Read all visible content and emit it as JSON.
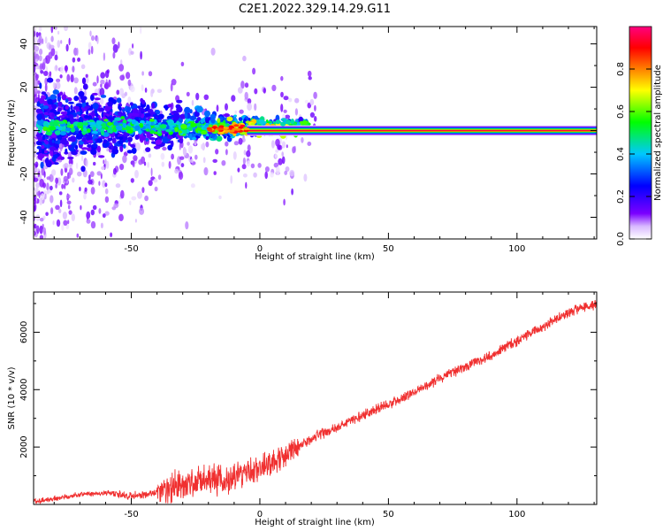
{
  "figure": {
    "title": "C2E1.2022.329.14.29.G11"
  },
  "chart_data": [
    {
      "type": "heatmap",
      "xlabel": "Height of straight line (km)",
      "ylabel": "Frequency (Hz)",
      "xlim": [
        -88,
        131
      ],
      "ylim": [
        -50,
        48
      ],
      "x_ticks": [
        -50,
        0,
        50,
        100
      ],
      "y_ticks": [
        -40,
        -20,
        0,
        20,
        40
      ],
      "grid": false,
      "colorbar": {
        "label": "Normalized spectral amplitude",
        "range": [
          0,
          1
        ],
        "ticks": [
          0.0,
          0.2,
          0.4,
          0.6,
          0.8
        ],
        "tick_labels": [
          "0.0",
          "0.2",
          "0.4",
          "0.6",
          "0.8"
        ],
        "colors": [
          "#ffffff",
          "#7b00ff",
          "#0000ff",
          "#00c8ff",
          "#00ff00",
          "#ffff00",
          "#ff8000",
          "#ff0000",
          "#ff0080"
        ]
      },
      "description_points": [
        {
          "x": -80,
          "y": 3,
          "amp": 0.35
        },
        {
          "x": -60,
          "y": 2,
          "amp": 0.4
        },
        {
          "x": -40,
          "y": 1,
          "amp": 0.45
        },
        {
          "x": -20,
          "y": 1,
          "amp": 0.6
        },
        {
          "x": 0,
          "y": 0,
          "amp": 0.9
        },
        {
          "x": 50,
          "y": 0,
          "amp": 1.0
        },
        {
          "x": 100,
          "y": 0,
          "amp": 1.0
        }
      ]
    },
    {
      "type": "line",
      "xlabel": "Height of straight line (km)",
      "ylabel": "SNR (10 * v/v)",
      "xlim": [
        -88,
        131
      ],
      "ylim": [
        0,
        7400
      ],
      "x_ticks": [
        -50,
        0,
        50,
        100
      ],
      "y_ticks": [
        2000,
        4000,
        6000
      ],
      "grid": false,
      "series": [
        {
          "color": "#f03030",
          "x": [
            -88,
            -80,
            -70,
            -60,
            -50,
            -40,
            -30,
            -20,
            -10,
            0,
            10,
            20,
            30,
            40,
            50,
            60,
            70,
            80,
            90,
            100,
            110,
            120,
            131
          ],
          "y": [
            100,
            200,
            350,
            400,
            300,
            400,
            700,
            850,
            900,
            1300,
            1700,
            2300,
            2700,
            3100,
            3500,
            3900,
            4400,
            4800,
            5200,
            5700,
            6200,
            6700,
            7000
          ]
        }
      ]
    }
  ]
}
